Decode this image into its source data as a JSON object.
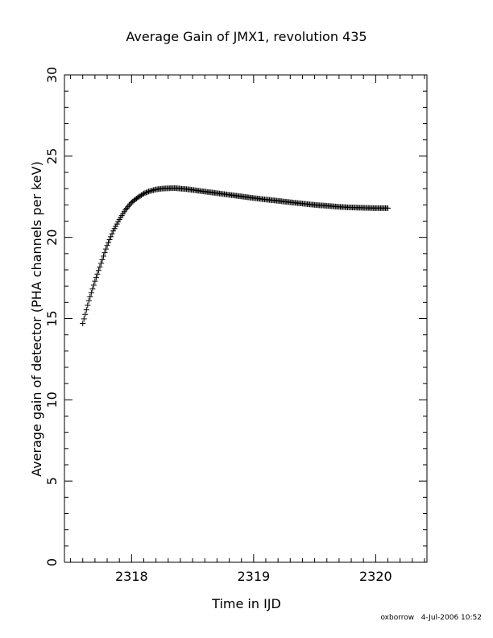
{
  "chart_data": {
    "type": "scatter",
    "title": "Average Gain of JMX1, revolution 435",
    "xlabel": "Time in IJD",
    "ylabel": "Average gain of detector (PHA channels per keV)",
    "xlim": [
      2317.45,
      2320.42
    ],
    "ylim": [
      0,
      30
    ],
    "xticks": [
      2318,
      2319,
      2320
    ],
    "yticks": [
      0,
      5,
      10,
      15,
      20,
      25,
      30
    ],
    "marker": "+",
    "grid": false,
    "series": [
      {
        "x": [
          2317.6,
          2317.65,
          2317.7,
          2317.75,
          2317.8,
          2317.85,
          2317.9,
          2317.95,
          2318.0,
          2318.05,
          2318.1,
          2318.15,
          2318.2,
          2318.25,
          2318.3,
          2318.35,
          2318.4,
          2318.45,
          2318.5,
          2318.6,
          2318.7,
          2318.8,
          2318.9,
          2319.0,
          2319.1,
          2319.2,
          2319.3,
          2319.4,
          2319.5,
          2319.6,
          2319.7,
          2319.8,
          2319.9,
          2320.0,
          2320.05,
          2320.1
        ],
        "y": [
          14.7,
          16.1,
          17.3,
          18.4,
          19.5,
          20.4,
          21.1,
          21.7,
          22.15,
          22.45,
          22.7,
          22.85,
          22.95,
          23.0,
          23.02,
          23.03,
          23.0,
          22.97,
          22.92,
          22.82,
          22.72,
          22.62,
          22.52,
          22.42,
          22.33,
          22.25,
          22.16,
          22.08,
          22.0,
          21.94,
          21.88,
          21.84,
          21.82,
          21.8,
          21.8,
          21.8
        ]
      }
    ]
  },
  "footer": "oxborrow   4-Jul-2006 10:52"
}
